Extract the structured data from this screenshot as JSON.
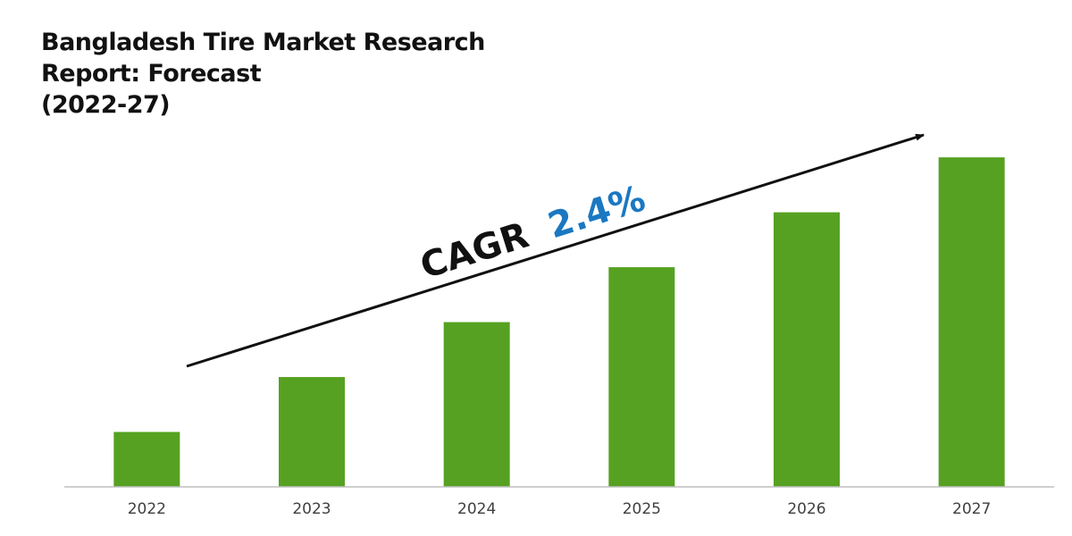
{
  "title_lines": [
    "Bangladesh Tire Market Research",
    "Report: Forecast",
    "(2022-27)"
  ],
  "cagr": {
    "label": "CAGR",
    "value": "2.4%"
  },
  "colors": {
    "bar": "#56a122",
    "cagr_value": "#1a78c2",
    "text": "#111111",
    "axis": "#bfbfbf"
  },
  "chart_data": {
    "type": "bar",
    "categories": [
      "2022",
      "2023",
      "2024",
      "2025",
      "2026",
      "2027"
    ],
    "values": [
      1,
      2,
      3,
      4,
      5,
      6
    ],
    "ylim": [
      0,
      6.1
    ],
    "title": "Bangladesh Tire Market Research Report: Forecast (2022-27)",
    "xlabel": "",
    "ylabel": "",
    "grid": false,
    "legend": "none",
    "annotation": "CAGR 2.4%"
  }
}
